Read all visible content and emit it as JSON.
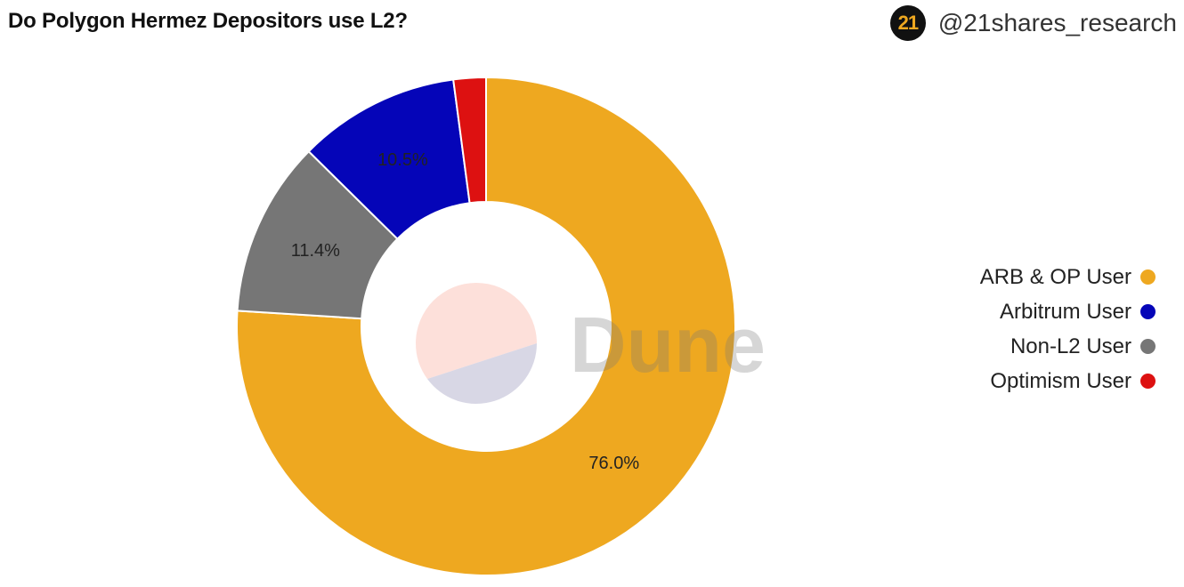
{
  "header": {
    "title": "Do Polygon Hermez Depositors use L2?",
    "logo_text": "21",
    "handle": "@21shares_research"
  },
  "watermark": {
    "text": "Dune"
  },
  "chart_data": {
    "type": "pie",
    "variant": "donut",
    "title": "Do Polygon Hermez Depositors use L2?",
    "legend_position": "right",
    "slices": [
      {
        "name": "ARB & OP User",
        "value": 76.0,
        "label": "76.0%",
        "color": "#EEA820"
      },
      {
        "name": "Arbitrum User",
        "value": 10.5,
        "label": "10.5%",
        "color": "#0505B8"
      },
      {
        "name": "Non-L2 User",
        "value": 11.4,
        "label": "11.4%",
        "color": "#767676"
      },
      {
        "name": "Optimism User",
        "value": 2.1,
        "label": "",
        "color": "#DD1111"
      }
    ],
    "drawing_order": [
      "ARB & OP User",
      "Non-L2 User",
      "Arbitrum User",
      "Optimism User"
    ]
  }
}
